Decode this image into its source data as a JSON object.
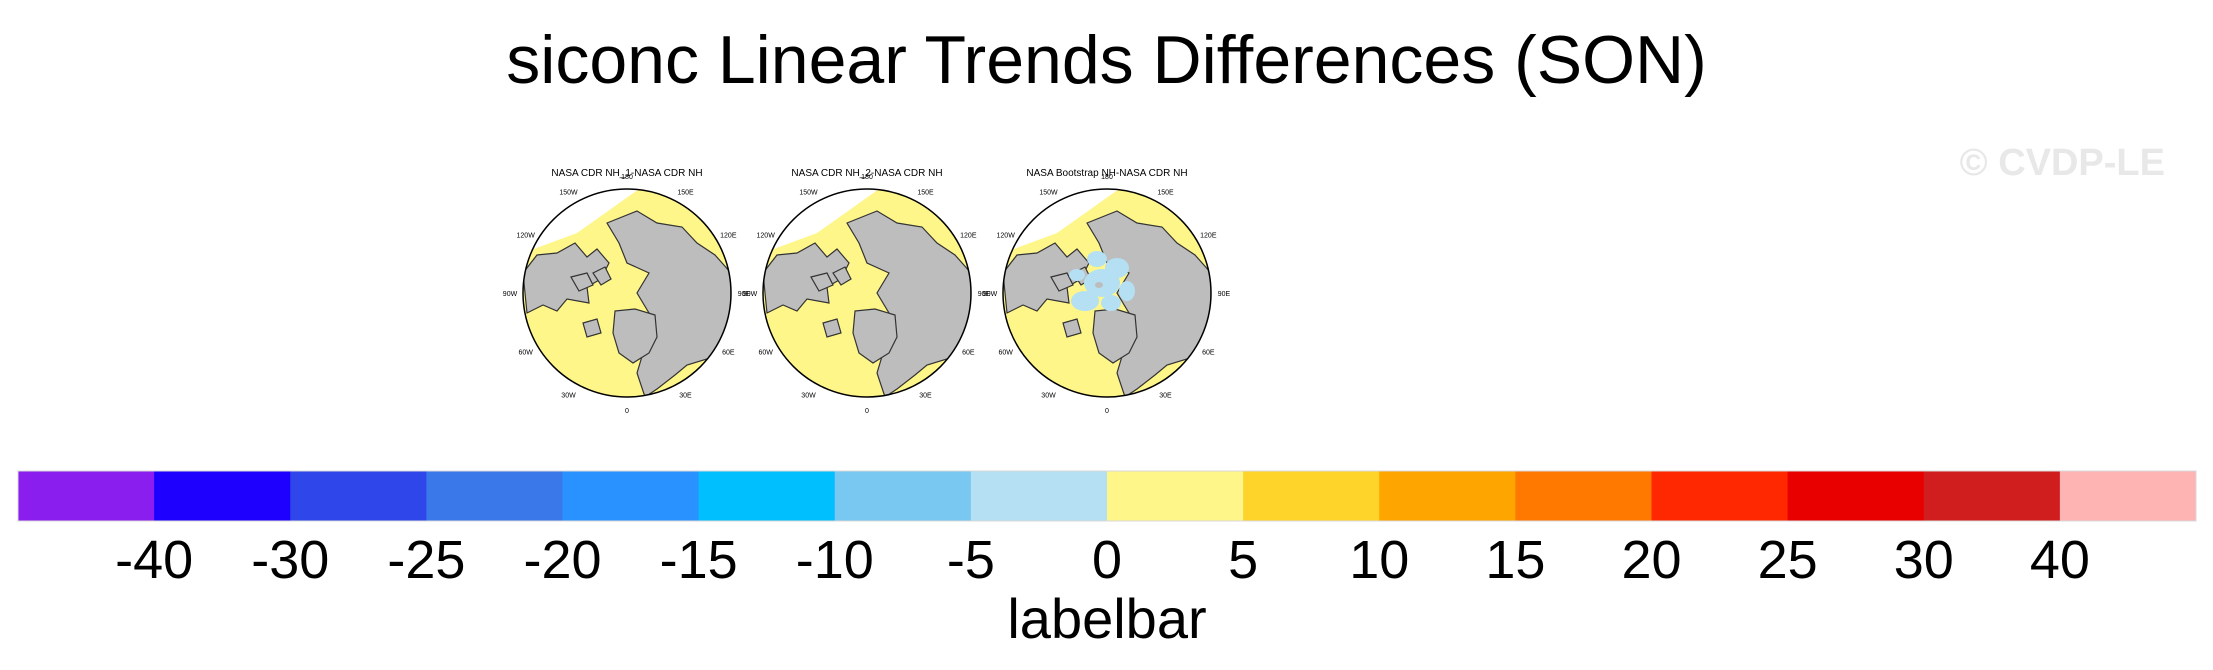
{
  "title": "siconc Linear Trends Differences (SON)",
  "watermark": "© CVDP-LE",
  "chart_data": {
    "type": "heatmap",
    "title": "siconc Linear Trends Differences (SON)",
    "panels": [
      {
        "title": "NASA CDR NH_1-NASA CDR NH",
        "lon_labels": [
          "180",
          "150E",
          "120E",
          "90E",
          "60E",
          "30E",
          "0",
          "30W",
          "60W",
          "90W",
          "120W",
          "150W"
        ],
        "field": "near-zero (0 to 5) over ice-covered ocean"
      },
      {
        "title": "NASA CDR NH_2-NASA CDR NH",
        "lon_labels": [
          "180",
          "150E",
          "120E",
          "90E",
          "60E",
          "30E",
          "0",
          "30W",
          "60W",
          "90W",
          "120W",
          "150W"
        ],
        "field": "near-zero (0 to 5) over ice-covered ocean"
      },
      {
        "title": "NASA Bootstrap NH-NASA CDR NH",
        "lon_labels": [
          "180",
          "150E",
          "120E",
          "90E",
          "60E",
          "30E",
          "0",
          "30W",
          "60W",
          "90W",
          "120W",
          "150W"
        ],
        "field": "mostly 0 to 5, patches of -5 to 0 in central Arctic"
      }
    ],
    "labelbar": {
      "label": "labelbar",
      "tick_labels": [
        "-40",
        "-30",
        "-25",
        "-20",
        "-15",
        "-10",
        "-5",
        "0",
        "5",
        "10",
        "15",
        "20",
        "25",
        "30",
        "40"
      ],
      "colors": [
        "#8a1eee",
        "#1e00ff",
        "#2e46ea",
        "#3a78ea",
        "#2a92fe",
        "#00bfff",
        "#79c8f2",
        "#b5dff2",
        "#fff68a",
        "#ffd42a",
        "#ffa500",
        "#ff7800",
        "#ff2800",
        "#e80000",
        "#d01e1e",
        "#ffb4b4"
      ]
    }
  }
}
